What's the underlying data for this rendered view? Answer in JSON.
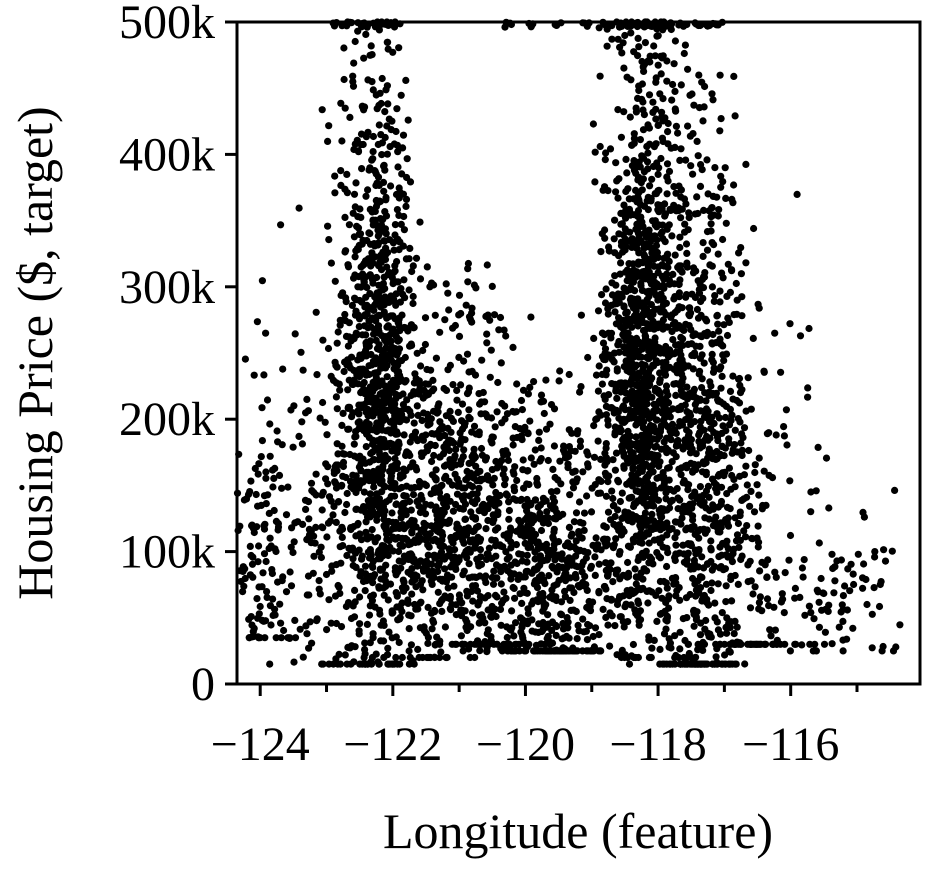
{
  "chart_data": {
    "type": "scatter",
    "title": "",
    "xlabel": "Longitude (feature)",
    "ylabel": "Housing Price ($, target)",
    "xlim": [
      -124.35,
      -114.05
    ],
    "ylim": [
      0,
      500000
    ],
    "x_ticks": [
      -124,
      -122,
      -120,
      -118,
      -116
    ],
    "x_tick_labels": [
      "−124",
      "−122",
      "−120",
      "−118",
      "−116"
    ],
    "y_ticks": [
      0,
      100000,
      200000,
      300000,
      400000,
      500000
    ],
    "y_tick_labels": [
      "0",
      "100k",
      "200k",
      "300k",
      "400k",
      "500k"
    ],
    "grid": false,
    "legend": "none",
    "marker_color": "#000000",
    "clusters": [
      {
        "center_x": -122.25,
        "spread_x": 0.28,
        "y_min": 15000,
        "y_max": 500000,
        "y_mean": 230000,
        "count": 900
      },
      {
        "center_x": -121.4,
        "spread_x": 0.55,
        "y_min": 20000,
        "y_max": 320000,
        "y_mean": 130000,
        "count": 650
      },
      {
        "center_x": -120.55,
        "spread_x": 0.45,
        "y_min": 30000,
        "y_max": 300000,
        "y_mean": 110000,
        "count": 300
      },
      {
        "center_x": -119.55,
        "spread_x": 0.45,
        "y_min": 25000,
        "y_max": 260000,
        "y_mean": 80000,
        "count": 500
      },
      {
        "center_x": -118.25,
        "spread_x": 0.3,
        "y_min": 20000,
        "y_max": 500000,
        "y_mean": 240000,
        "count": 1200
      },
      {
        "center_x": -117.35,
        "spread_x": 0.35,
        "y_min": 15000,
        "y_max": 500000,
        "y_mean": 170000,
        "count": 750
      },
      {
        "center_x": -116.4,
        "spread_x": 0.5,
        "y_min": 30000,
        "y_max": 400000,
        "y_mean": 80000,
        "count": 160
      },
      {
        "center_x": -124.0,
        "spread_x": 0.25,
        "y_min": 35000,
        "y_max": 280000,
        "y_mean": 95000,
        "count": 140
      },
      {
        "center_x": -123.0,
        "spread_x": 0.4,
        "y_min": 15000,
        "y_max": 360000,
        "y_mean": 110000,
        "count": 160
      },
      {
        "center_x": -115.2,
        "spread_x": 0.45,
        "y_min": 25000,
        "y_max": 150000,
        "y_mean": 65000,
        "count": 70
      }
    ],
    "capped_value": 500000,
    "capped_points_x": [
      -122.85,
      -122.7,
      -122.55,
      -122.45,
      -122.35,
      -122.25,
      -122.1,
      -121.95,
      -120.25,
      -119.9,
      -119.5,
      -119.1,
      -118.75,
      -118.5,
      -118.4,
      -118.3,
      -118.2,
      -118.1,
      -118.0,
      -117.85,
      -117.65,
      -117.4,
      -117.2,
      -117.05
    ]
  }
}
